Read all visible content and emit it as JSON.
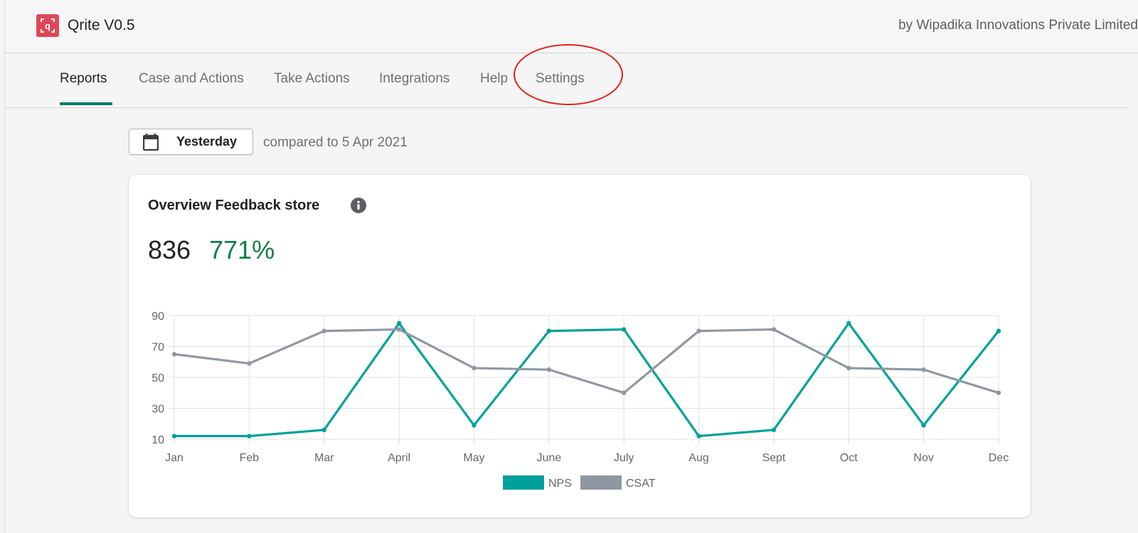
{
  "app": {
    "title": "Qrite V0.5",
    "byline": "by Wipadika Innovations Private Limited"
  },
  "nav": {
    "tabs": [
      {
        "label": "Reports",
        "active": true
      },
      {
        "label": "Case and Actions",
        "active": false
      },
      {
        "label": "Take Actions",
        "active": false
      },
      {
        "label": "Integrations",
        "active": false
      },
      {
        "label": "Help",
        "active": false
      },
      {
        "label": "Settings",
        "active": false
      }
    ]
  },
  "date_filter": {
    "label": "Yesterday",
    "compare_text": "compared to 5 Apr 2021",
    "icon": "calendar-icon"
  },
  "card": {
    "title": "Overview Feedback store",
    "info_icon": "info-icon",
    "metric_value": "836",
    "metric_change": "771%"
  },
  "colors": {
    "accent": "#007f5f",
    "positive": "#108043",
    "logo": "#e04657",
    "annotation": "#e51f17"
  },
  "chart_data": {
    "type": "line",
    "categories": [
      "Jan",
      "Feb",
      "Mar",
      "April",
      "May",
      "June",
      "July",
      "Aug",
      "Sept",
      "Oct",
      "Nov",
      "Dec"
    ],
    "series": [
      {
        "name": "NPS",
        "color": "#00a19a",
        "values": [
          12,
          12,
          16,
          85,
          19,
          80,
          81,
          12,
          16,
          85,
          19,
          80
        ]
      },
      {
        "name": "CSAT",
        "color": "#8f98a1",
        "values": [
          65,
          59,
          80,
          81,
          56,
          55,
          40,
          80,
          81,
          56,
          55,
          40
        ]
      }
    ],
    "yticks": [
      10,
      30,
      50,
      70,
      90
    ],
    "ylim": [
      10,
      90
    ],
    "grid": true,
    "legend": "bottom"
  }
}
